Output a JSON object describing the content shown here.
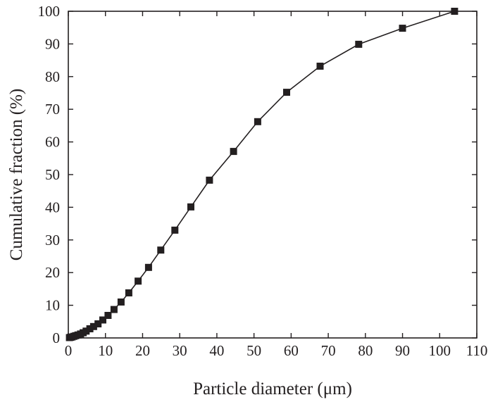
{
  "chart_data": {
    "type": "line",
    "title": "",
    "xlabel": "Particle diameter (μm)",
    "ylabel": "Cumulative fraction (%)",
    "xlim": [
      0,
      110
    ],
    "ylim": [
      0,
      100
    ],
    "xticks": [
      0,
      10,
      20,
      30,
      40,
      50,
      60,
      70,
      80,
      90,
      100,
      110
    ],
    "yticks": [
      0,
      10,
      20,
      30,
      40,
      50,
      60,
      70,
      80,
      90,
      100
    ],
    "grid": false,
    "legend": "none",
    "marker": "square",
    "color": "#231f20",
    "series": [
      {
        "x": [
          0.3,
          0.6,
          1.0,
          1.5,
          2.0,
          2.6,
          3.3,
          4.0,
          4.8,
          5.8,
          6.8,
          8.0,
          9.3,
          10.7,
          12.3,
          14.2,
          16.3,
          18.8,
          21.6,
          24.9,
          28.7,
          33.0,
          38.0,
          44.5,
          51.0,
          58.8,
          67.8,
          78.2,
          90.0,
          104.0
        ],
        "y": [
          0.1,
          0.2,
          0.3,
          0.5,
          0.7,
          0.9,
          1.2,
          1.6,
          2.1,
          2.8,
          3.5,
          4.3,
          5.5,
          6.9,
          8.7,
          11.0,
          13.8,
          17.4,
          21.6,
          26.9,
          33.0,
          40.1,
          48.3,
          57.1,
          66.2,
          75.2,
          83.2,
          89.9,
          94.8,
          100.0
        ]
      }
    ]
  }
}
